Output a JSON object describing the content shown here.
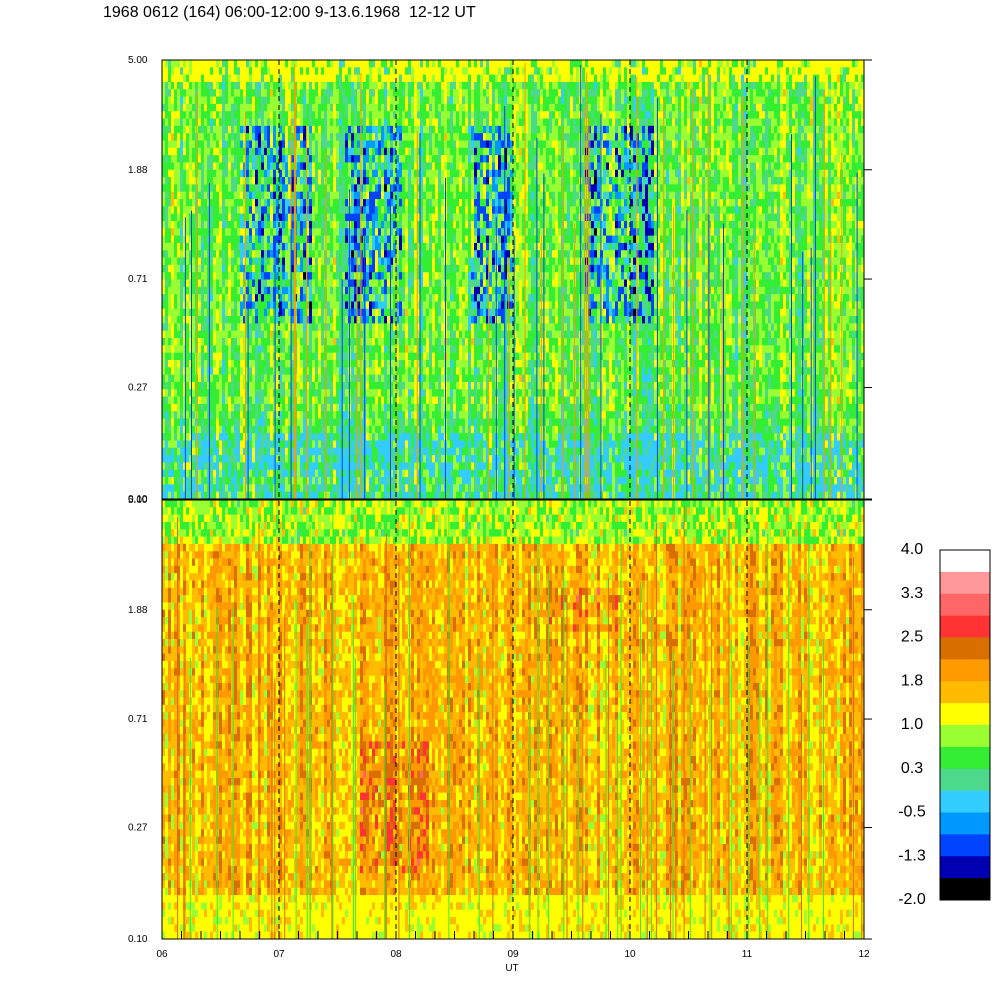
{
  "title": "1968 0612 (164) 06:00-12:00 9-13.6.1968  12-12 UT",
  "chart_data": {
    "type": "heatmap",
    "title": "1968 0612 (164) 06:00-12:00 9-13.6.1968  12-12 UT",
    "xlabel": "UT",
    "ylabel": "",
    "x_ticks": [
      "06",
      "07",
      "08",
      "09",
      "10",
      "11",
      "12"
    ],
    "xlim": [
      6,
      12
    ],
    "y_scale": "log",
    "panels": [
      {
        "name": "upper",
        "ylim": [
          0.1,
          5.0
        ],
        "y_ticks": [
          "5.00",
          "1.88",
          "0.71",
          "0.27",
          "0.10"
        ],
        "dominant_levels": "approximately -1.3 to 1.0 (mostly 0.3 to 0.6)"
      },
      {
        "name": "lower",
        "ylim": [
          0.1,
          5.0
        ],
        "y_ticks": [
          "5.00",
          "1.88",
          "0.71",
          "0.27",
          "0.10"
        ],
        "dominant_levels": "approximately 0.6 to 2.5 (mostly 1.4 to 2.1)"
      }
    ],
    "vertical_marker_lines_at_hour": [
      7,
      8,
      9,
      10,
      11
    ],
    "colorbar": {
      "labels": [
        "4.0",
        "3.3",
        "2.5",
        "1.8",
        "1.0",
        "0.3",
        "-0.5",
        "-1.3",
        "-2.0"
      ],
      "range": [
        -2.0,
        4.0
      ],
      "colors": [
        "#ffffff",
        "#ff9999",
        "#ff6666",
        "#ff3333",
        "#d96f00",
        "#ff9900",
        "#ffbb00",
        "#ffff00",
        "#99ff33",
        "#33ee33",
        "#4dd98c",
        "#33ccff",
        "#0099ff",
        "#0044ff",
        "#0000b3",
        "#000000"
      ]
    }
  }
}
